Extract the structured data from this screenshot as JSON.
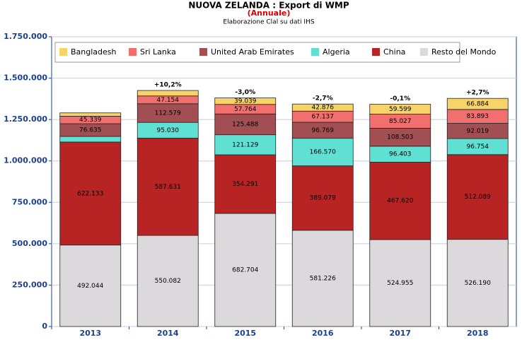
{
  "chart_data": {
    "type": "stacked-bar",
    "title": "NUOVA ZELANDA : Export di WMP",
    "subtitle": "(Annuale)",
    "source": "Elaborazione Clal su dati IHS",
    "categories": [
      "2013",
      "2014",
      "2015",
      "2016",
      "2017",
      "2018"
    ],
    "annotations": [
      null,
      "+10,2%",
      "-3,0%",
      "-2,7%",
      "-0,1%",
      "+2,7%"
    ],
    "series": [
      {
        "name": "Resto del Mondo",
        "color": "#dcd9dc",
        "values": [
          492044,
          550082,
          682704,
          581226,
          524955,
          526190
        ],
        "value_labels": [
          "492.044",
          "550.082",
          "682.704",
          "581.226",
          "524.955",
          "526.190"
        ]
      },
      {
        "name": "China",
        "color": "#b82323",
        "values": [
          622133,
          587631,
          354291,
          389079,
          467620,
          512089
        ],
        "value_labels": [
          "622.133",
          "587.631",
          "354.291",
          "389.079",
          "467.620",
          "512.089"
        ]
      },
      {
        "name": "Algeria",
        "color": "#5fe0d3",
        "values": [
          34000,
          95030,
          121129,
          166570,
          96403,
          96754
        ],
        "value_labels": [
          null,
          "95.030",
          "121.129",
          "166.570",
          "96.403",
          "96.754"
        ]
      },
      {
        "name": "United Arab Emirates",
        "color": "#a14f52",
        "values": [
          76635,
          112579,
          125488,
          96769,
          108503,
          92019
        ],
        "value_labels": [
          "76.635",
          "112.579",
          "125.488",
          "96.769",
          "108.503",
          "92.019"
        ]
      },
      {
        "name": "Sri Lanka",
        "color": "#f26f6f",
        "values": [
          45339,
          47154,
          57764,
          67137,
          85027,
          83893
        ],
        "value_labels": [
          "45.339",
          "47.154",
          "57.764",
          "67.137",
          "85.027",
          "83.893"
        ]
      },
      {
        "name": "Bangladesh",
        "color": "#f7d46a",
        "values": [
          20000,
          33000,
          39039,
          42876,
          59599,
          66884
        ],
        "value_labels": [
          null,
          null,
          "39.039",
          "42.876",
          "59.599",
          "66.884"
        ]
      }
    ],
    "ylim": [
      0,
      1750000
    ],
    "yticks": [
      0,
      {
        "value": 250000,
        "label": "250.000"
      },
      {
        "value": 500000,
        "label": "500.000"
      },
      {
        "value": 750000,
        "label": "750.000"
      },
      {
        "value": 1000000,
        "label": "1.000.000"
      },
      {
        "value": 1250000,
        "label": "1.250.000"
      },
      {
        "value": 1500000,
        "label": "1.500.000"
      },
      {
        "value": 1750000,
        "label": "1.750.000"
      }
    ],
    "grid": true
  }
}
